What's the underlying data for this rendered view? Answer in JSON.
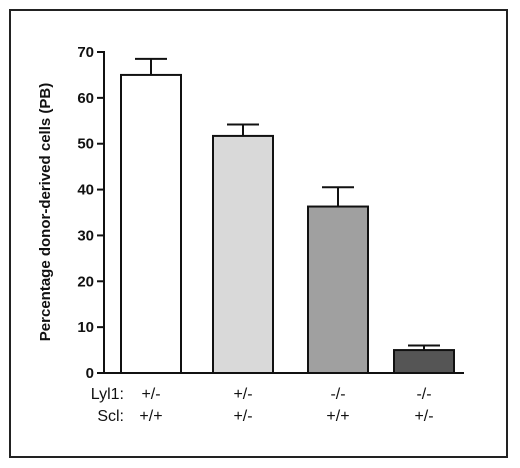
{
  "chart_data": {
    "type": "bar",
    "title": "",
    "xlabel": "",
    "ylabel": "Percentage donor-derived cells (PB)",
    "ylim": [
      0,
      70
    ],
    "yticks": [
      0,
      10,
      20,
      30,
      40,
      50,
      60,
      70
    ],
    "genotype_rows": [
      {
        "name": "Lyl1:",
        "values": [
          "+/-",
          "+/-",
          "-/-",
          "-/-"
        ]
      },
      {
        "name": "Scl:",
        "values": [
          "+/+",
          "+/-",
          "+/+",
          "+/-"
        ]
      }
    ],
    "values": [
      65,
      51.7,
      36.3,
      5
    ],
    "errors": [
      3.5,
      2.5,
      4.2,
      1.0
    ],
    "colors": [
      "#ffffff",
      "#d9d9d9",
      "#a0a0a0",
      "#555555"
    ],
    "grid": false,
    "legend": "none"
  }
}
